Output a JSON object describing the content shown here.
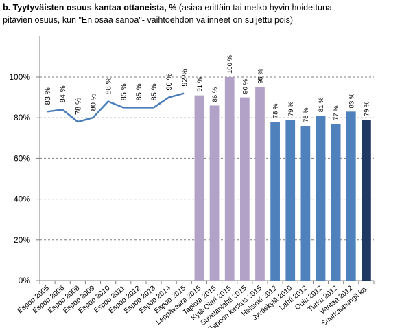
{
  "title": {
    "bold": "b. Tyytyväisten osuus kantaa ottaneista, %",
    "rest_line1": " (asiaa erittäin tai melko hyvin hoidettuna",
    "line2": "pitävien osuus, kun \"En osaa sanoa\"- vaihtoehdon valinneet on suljettu pois)"
  },
  "chart_data": {
    "type": "bar",
    "title": "b. Tyytyväisten osuus kantaa ottaneista, % (asiaa erittäin tai melko hyvin hoidettuna pitävien osuus, kun \"En osaa sanoa\"- vaihtoehdon valinneet on suljettu pois)",
    "xlabel": "",
    "ylabel": "",
    "ylim": [
      0,
      100
    ],
    "yticks": [
      "0%",
      "20%",
      "40%",
      "60%",
      "80%",
      "100%"
    ],
    "grid": "horizontal dashed",
    "categories": [
      "Espoo 2005",
      "Espoo 2006",
      "Espoo 2008",
      "Espoo 2009",
      "Espoo 2010",
      "Espoo 2011",
      "Espoo 2012",
      "Espoo 2013",
      "Espoo 2014",
      "Espoo 2015",
      "Leppävaara 2015",
      "Tapiola 2015",
      "Kylä-Olari 2015",
      "Suvelanlahti 2015",
      "Espoon keskus 2015",
      "Helsinki 2012",
      "Jyväskylä 2010",
      "Lahti 2012",
      "Oulu 2012",
      "Turku 2012",
      "Vantaa 2012",
      "Suurkaupungit ka."
    ],
    "series": [
      {
        "kind": "line",
        "color": "#4a7ebb",
        "points": [
          {
            "category": "Espoo 2005",
            "value": 83,
            "label": "83 %"
          },
          {
            "category": "Espoo 2006",
            "value": 84,
            "label": "84 %"
          },
          {
            "category": "Espoo 2008",
            "value": 78,
            "label": "78 %"
          },
          {
            "category": "Espoo 2009",
            "value": 80,
            "label": "80 %"
          },
          {
            "category": "Espoo 2010",
            "value": 88,
            "label": "88 %"
          },
          {
            "category": "Espoo 2011",
            "value": 85,
            "label": "85 %"
          },
          {
            "category": "Espoo 2012",
            "value": 85,
            "label": "85 %"
          },
          {
            "category": "Espoo 2013",
            "value": 85,
            "label": "85 %"
          },
          {
            "category": "Espoo 2014",
            "value": 90,
            "label": "90 %"
          },
          {
            "category": "Espoo 2015",
            "value": 92,
            "label": "92 %"
          }
        ]
      },
      {
        "kind": "bar",
        "color": "#b3a2c7",
        "points": [
          {
            "category": "Leppävaara 2015",
            "value": 91,
            "label": "91 %"
          },
          {
            "category": "Tapiola 2015",
            "value": 86,
            "label": "86 %"
          },
          {
            "category": "Kylä-Olari 2015",
            "value": 100,
            "label": "100 %"
          },
          {
            "category": "Suvelanlahti 2015",
            "value": 90,
            "label": "90 %"
          },
          {
            "category": "Espoon keskus 2015",
            "value": 95,
            "label": "95 %"
          }
        ]
      },
      {
        "kind": "bar",
        "color": "#4f81bd",
        "points": [
          {
            "category": "Helsinki 2012",
            "value": 78,
            "label": "78 %"
          },
          {
            "category": "Jyväskylä 2010",
            "value": 79,
            "label": "79 %"
          },
          {
            "category": "Lahti 2012",
            "value": 76,
            "label": "76 %"
          },
          {
            "category": "Oulu 2012",
            "value": 81,
            "label": "81 %"
          },
          {
            "category": "Turku 2012",
            "value": 77,
            "label": "77 %"
          },
          {
            "category": "Vantaa 2012",
            "value": 83,
            "label": "83 %"
          }
        ]
      },
      {
        "kind": "bar",
        "color": "#1f3864",
        "points": [
          {
            "category": "Suurkaupungit ka.",
            "value": 79,
            "label": "79 %"
          }
        ]
      }
    ]
  }
}
